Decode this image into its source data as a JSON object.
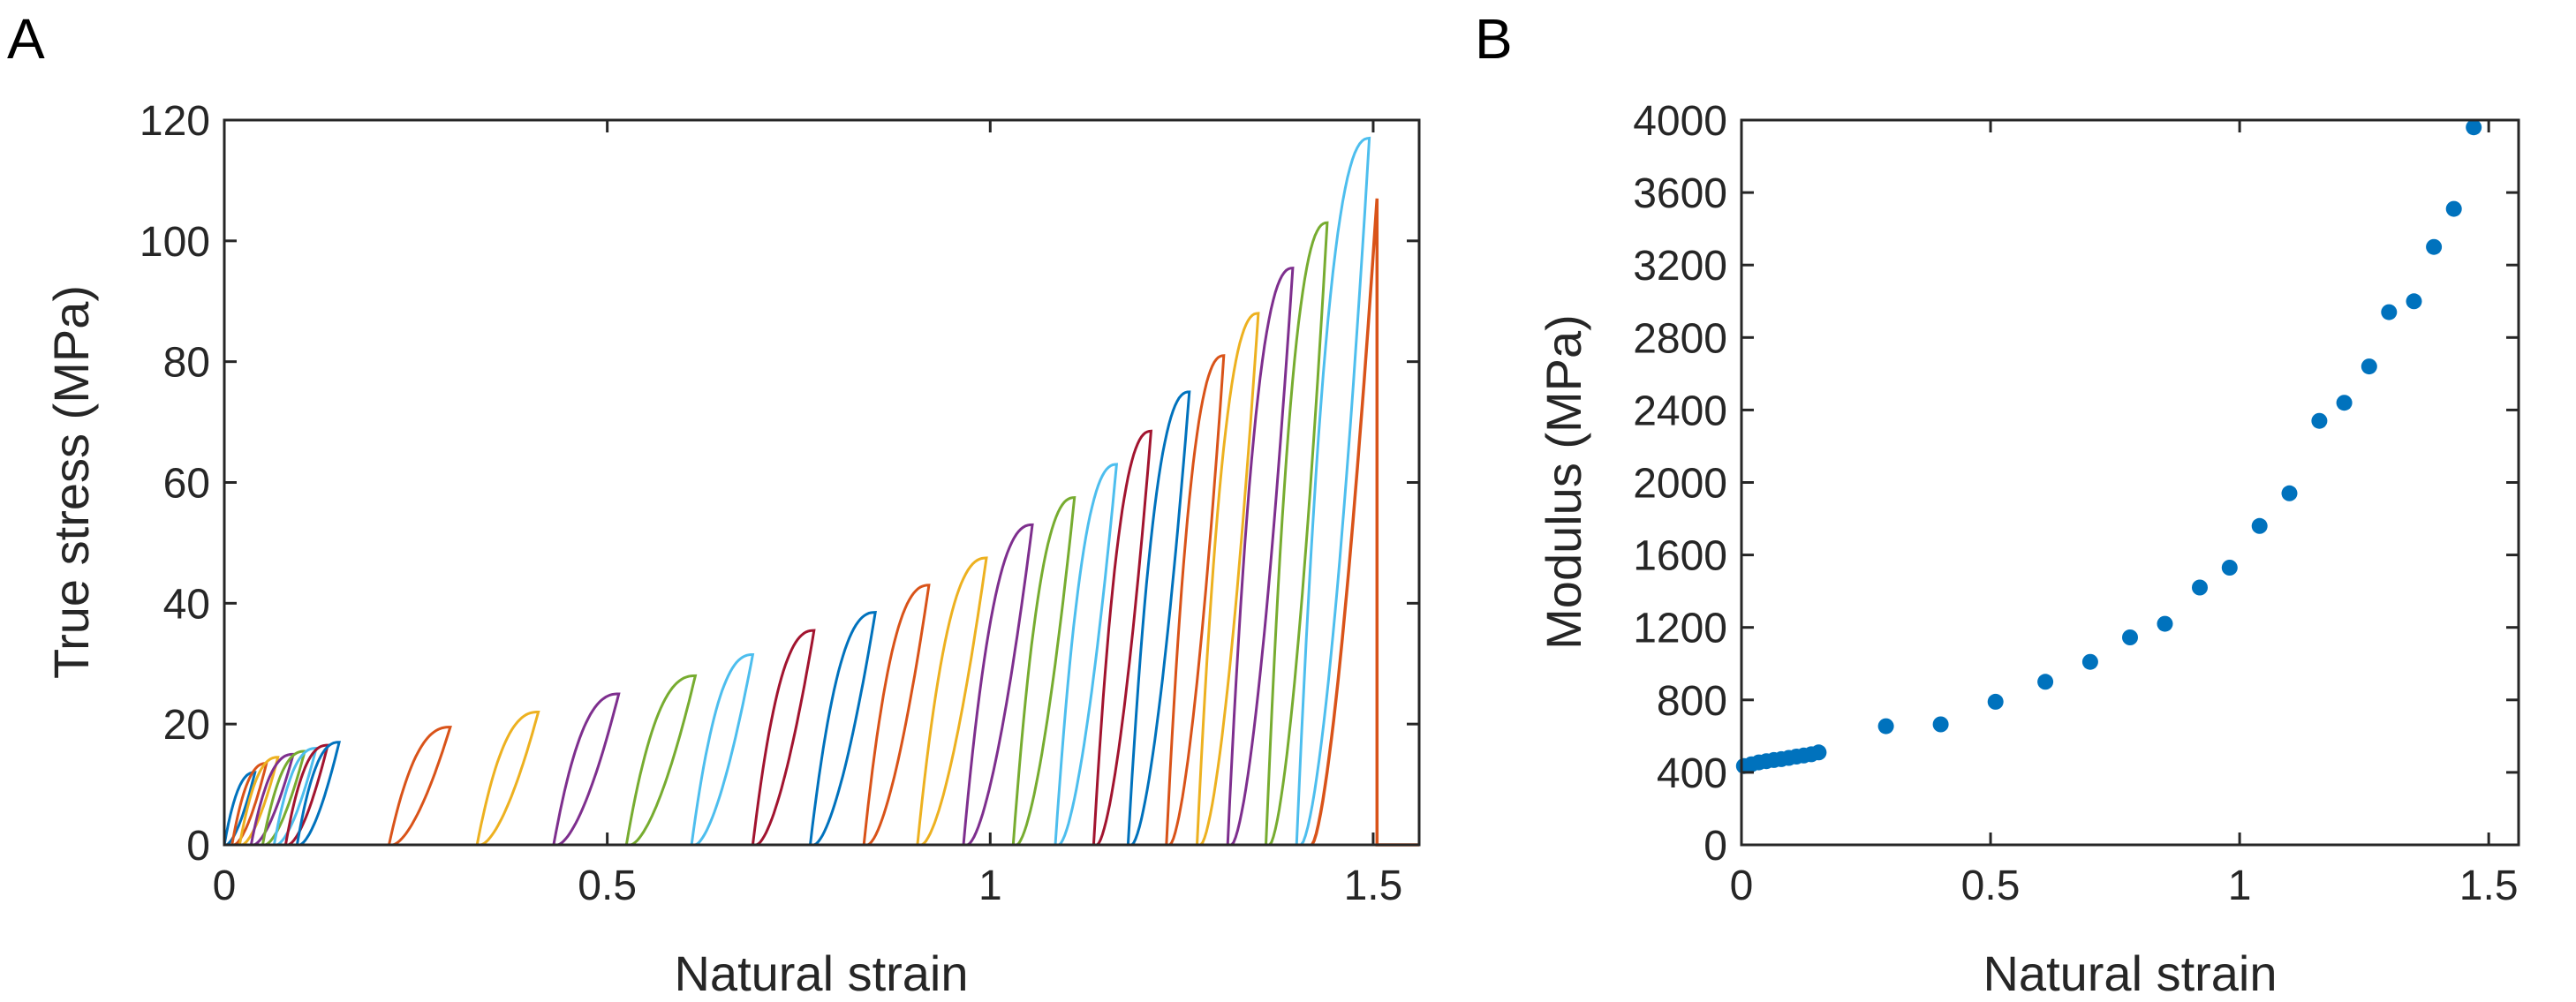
{
  "chart_data": [
    {
      "panel_label": "A",
      "type": "line",
      "xlabel": "Natural strain",
      "ylabel": "True stress (MPa)",
      "xlim": [
        0,
        1.56
      ],
      "ylim": [
        0,
        120
      ],
      "xticks": [
        0,
        0.5,
        1,
        1.5
      ],
      "xtick_labels": [
        "0",
        "0.5",
        "1",
        "1.5"
      ],
      "yticks": [
        0,
        20,
        40,
        60,
        80,
        100,
        120
      ],
      "ytick_labels": [
        "0",
        "20",
        "40",
        "60",
        "80",
        "100",
        "120"
      ],
      "grid": false,
      "color_cycle": [
        "#0072BD",
        "#D95319",
        "#EDB120",
        "#7E2F8E",
        "#77AC30",
        "#4DBEEE",
        "#A2142F"
      ],
      "loops": [
        {
          "x0": 0.0,
          "x1": 0.04,
          "peak": 12.0
        },
        {
          "x0": 0.01,
          "x1": 0.055,
          "peak": 13.5
        },
        {
          "x0": 0.02,
          "x1": 0.07,
          "peak": 14.5
        },
        {
          "x0": 0.035,
          "x1": 0.09,
          "peak": 15.0
        },
        {
          "x0": 0.05,
          "x1": 0.105,
          "peak": 15.5
        },
        {
          "x0": 0.065,
          "x1": 0.12,
          "peak": 16.0
        },
        {
          "x0": 0.08,
          "x1": 0.135,
          "peak": 16.5
        },
        {
          "x0": 0.095,
          "x1": 0.15,
          "peak": 17.0
        },
        {
          "x0": 0.215,
          "x1": 0.295,
          "peak": 19.5
        },
        {
          "x0": 0.33,
          "x1": 0.41,
          "peak": 22.0
        },
        {
          "x0": 0.43,
          "x1": 0.515,
          "peak": 25.0
        },
        {
          "x0": 0.525,
          "x1": 0.615,
          "peak": 28.0
        },
        {
          "x0": 0.61,
          "x1": 0.69,
          "peak": 31.5
        },
        {
          "x0": 0.69,
          "x1": 0.77,
          "peak": 35.5
        },
        {
          "x0": 0.765,
          "x1": 0.85,
          "peak": 38.5
        },
        {
          "x0": 0.835,
          "x1": 0.92,
          "peak": 43.0
        },
        {
          "x0": 0.905,
          "x1": 0.995,
          "peak": 47.5
        },
        {
          "x0": 0.965,
          "x1": 1.055,
          "peak": 53.0
        },
        {
          "x0": 1.03,
          "x1": 1.11,
          "peak": 57.5
        },
        {
          "x0": 1.085,
          "x1": 1.165,
          "peak": 63.0
        },
        {
          "x0": 1.135,
          "x1": 1.21,
          "peak": 68.5
        },
        {
          "x0": 1.18,
          "x1": 1.26,
          "peak": 75.0
        },
        {
          "x0": 1.23,
          "x1": 1.305,
          "peak": 81.0
        },
        {
          "x0": 1.27,
          "x1": 1.35,
          "peak": 88.0
        },
        {
          "x0": 1.31,
          "x1": 1.395,
          "peak": 95.5
        },
        {
          "x0": 1.36,
          "x1": 1.44,
          "peak": 103.0
        },
        {
          "x0": 1.4,
          "x1": 1.495,
          "peak": 117.0
        }
      ],
      "final_loading": {
        "x0": 1.42,
        "x1": 1.505,
        "peak": 107.0,
        "drop_to": 0,
        "end_x": 1.56
      }
    },
    {
      "panel_label": "B",
      "type": "scatter",
      "xlabel": "Natural strain",
      "ylabel": "Modulus (MPa)",
      "xlim": [
        0,
        1.56
      ],
      "ylim": [
        0,
        4000
      ],
      "xticks": [
        0,
        0.5,
        1,
        1.5
      ],
      "xtick_labels": [
        "0",
        "0.5",
        "1",
        "1.5"
      ],
      "yticks": [
        0,
        400,
        800,
        1200,
        1600,
        2000,
        2400,
        2800,
        3200,
        3600,
        4000
      ],
      "ytick_labels": [
        "0",
        "400",
        "800",
        "1200",
        "1600",
        "2000",
        "2400",
        "2800",
        "3200",
        "3600",
        "4000"
      ],
      "grid": false,
      "marker_color": "#0072BD",
      "x": [
        0.005,
        0.02,
        0.035,
        0.05,
        0.065,
        0.08,
        0.095,
        0.11,
        0.125,
        0.14,
        0.155,
        0.29,
        0.4,
        0.51,
        0.61,
        0.7,
        0.78,
        0.85,
        0.92,
        0.98,
        1.04,
        1.1,
        1.16,
        1.21,
        1.26,
        1.3,
        1.35,
        1.39,
        1.43,
        1.47
      ],
      "y": [
        435,
        445,
        455,
        462,
        468,
        473,
        480,
        487,
        493,
        500,
        510,
        655,
        665,
        790,
        900,
        1010,
        1145,
        1220,
        1420,
        1530,
        1760,
        1940,
        2340,
        2440,
        2640,
        2940,
        3000,
        3300,
        3510,
        3960
      ]
    }
  ]
}
